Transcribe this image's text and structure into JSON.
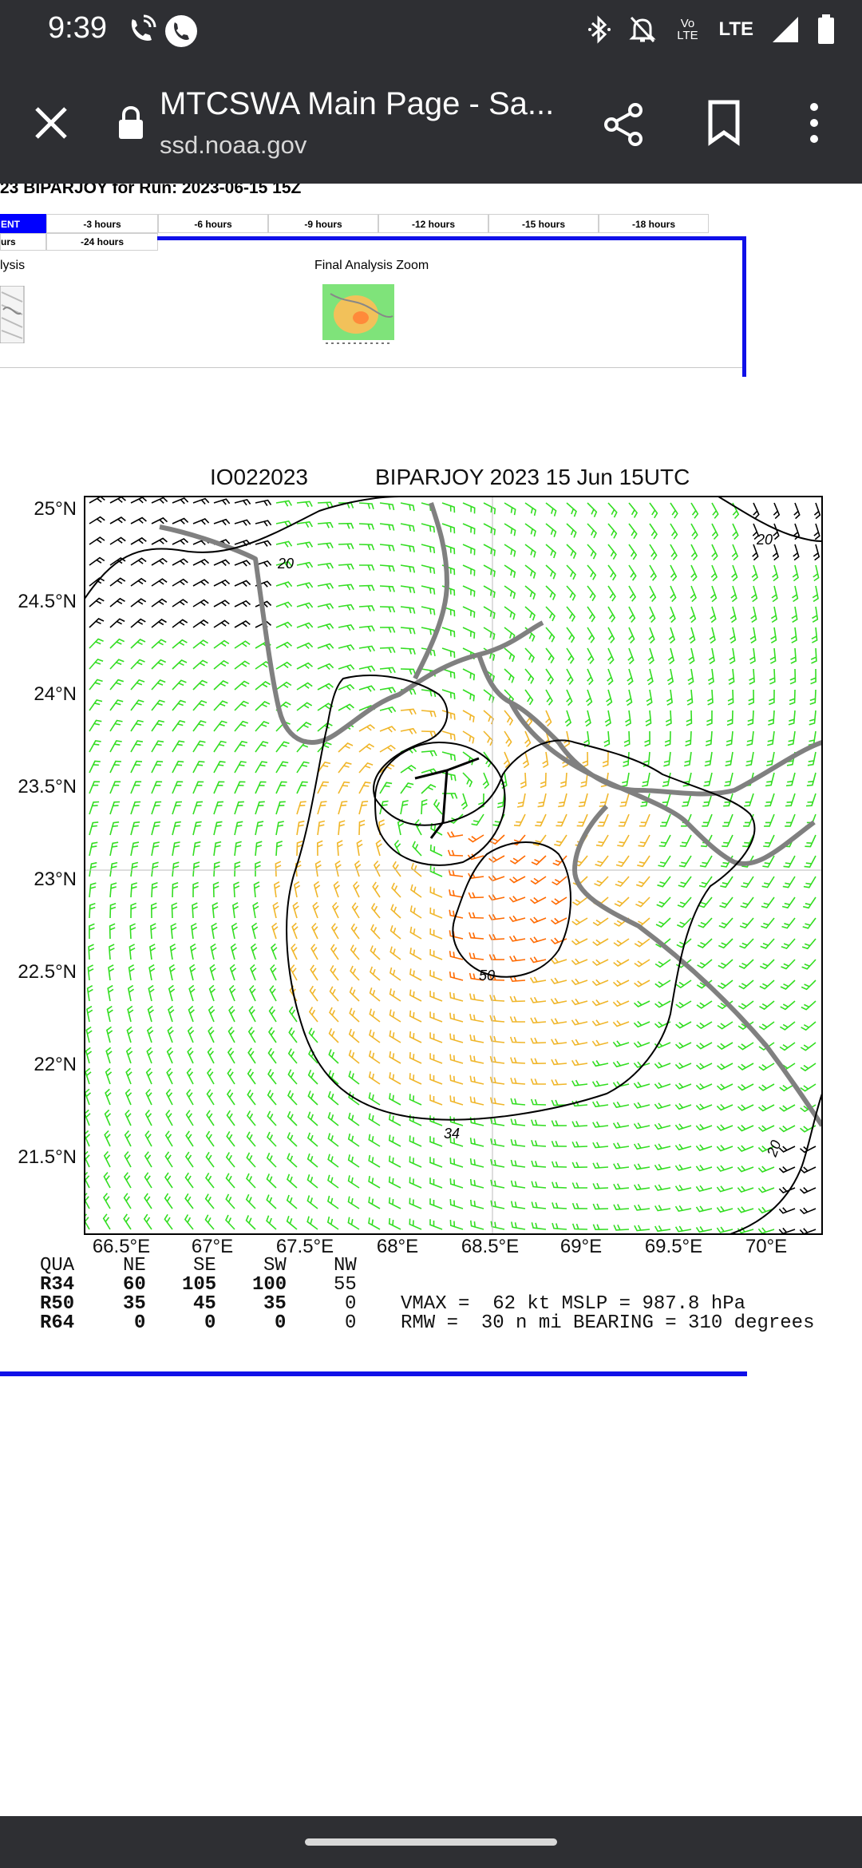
{
  "status_bar": {
    "time": "9:39",
    "volte_label": "Vo LTE",
    "lte_label": "LTE",
    "icons": [
      "wifi-calling-icon",
      "phone-icon",
      "bluetooth-icon",
      "mute-icon",
      "volte-icon",
      "lte-icon",
      "signal-icon",
      "battery-icon"
    ]
  },
  "browser": {
    "page_title": "MTCSWA Main Page - Sa...",
    "url": "ssd.noaa.gov",
    "icons": [
      "close-icon",
      "lock-icon",
      "share-icon",
      "bookmark-icon",
      "more-icon"
    ]
  },
  "page": {
    "run_title": "23 BIPARJOY for Run: 2023-06-15 15Z",
    "tabs_row1": [
      "ENT",
      "-3 hours",
      "-6 hours",
      "-9 hours",
      "-12 hours",
      "-15 hours",
      "-18 hours"
    ],
    "tabs_row2": [
      "urs",
      "-24 hours"
    ],
    "thumb_label_left": "lysis",
    "thumb_label_right": "Final Analysis Zoom"
  },
  "plot": {
    "storm_id": "IO022023",
    "storm_title": "BIPARJOY 2023 15 Jun 15UTC",
    "y_ticks": [
      "25°N",
      "24.5°N",
      "24°N",
      "23.5°N",
      "23°N",
      "22.5°N",
      "22°N",
      "21.5°N"
    ],
    "x_ticks": [
      "66.5°E",
      "67°E",
      "67.5°E",
      "68°E",
      "68.5°E",
      "69°E",
      "69.5°E",
      "70°E"
    ],
    "contour_labels": [
      "20",
      "20",
      "34",
      "50",
      "20"
    ],
    "colors": {
      "wind_green": "#33dd22",
      "wind_yellow": "#f0b62a",
      "wind_orange": "#ff6a00",
      "coastline": "#808080",
      "contour": "#000000"
    }
  },
  "wind_radii": {
    "header": [
      "QUA",
      "NE",
      "SE",
      "SW",
      "NW"
    ],
    "rows": [
      {
        "label": "R34",
        "values": [
          "60",
          "105",
          "100",
          "55"
        ]
      },
      {
        "label": "R50",
        "values": [
          "35",
          "45",
          "35",
          "0"
        ]
      },
      {
        "label": "R64",
        "values": [
          "0",
          "0",
          "0",
          "0"
        ]
      }
    ],
    "vmax_line": "VMAX =  62 kt MSLP = 987.8 hPa",
    "rmw_line": "RMW =  30 n mi BEARING = 310 degrees"
  }
}
